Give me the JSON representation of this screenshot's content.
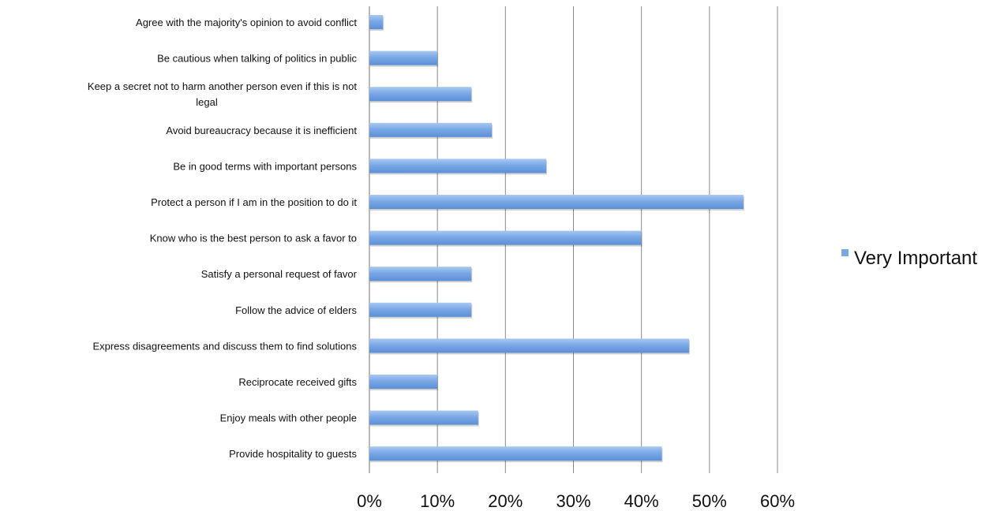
{
  "chart_data": {
    "type": "bar",
    "orientation": "horizontal",
    "categories": [
      [
        "Agree with the majority's opinion to avoid conflict"
      ],
      [
        "Be cautious when talking of politics in public"
      ],
      [
        "Keep a secret not to harm another person even if this is not",
        "legal"
      ],
      [
        "Avoid bureaucracy because it is inefficient"
      ],
      [
        "Be in good terms with important persons"
      ],
      [
        "Protect a person if I am in the position to do it"
      ],
      [
        "Know who is the best person to ask a favor to"
      ],
      [
        "Satisfy a personal request of favor"
      ],
      [
        "Follow the advice of elders"
      ],
      [
        "Express disagreements and discuss them to find solutions"
      ],
      [
        "Reciprocate received gifts"
      ],
      [
        "Enjoy meals with other people"
      ],
      [
        "Provide hospitality to guests"
      ]
    ],
    "series": [
      {
        "name": "Very Important",
        "color": "#7aa8e6",
        "values": [
          2,
          10,
          15,
          18,
          26,
          55,
          40,
          15,
          15,
          47,
          10,
          16,
          43
        ]
      }
    ],
    "xlim": [
      0,
      60
    ],
    "xticks": [
      "0%",
      "10%",
      "20%",
      "30%",
      "40%",
      "50%",
      "60%"
    ],
    "xtick_values": [
      0,
      10,
      20,
      30,
      40,
      50,
      60
    ],
    "grid": "vertical",
    "legend_position": "right"
  }
}
